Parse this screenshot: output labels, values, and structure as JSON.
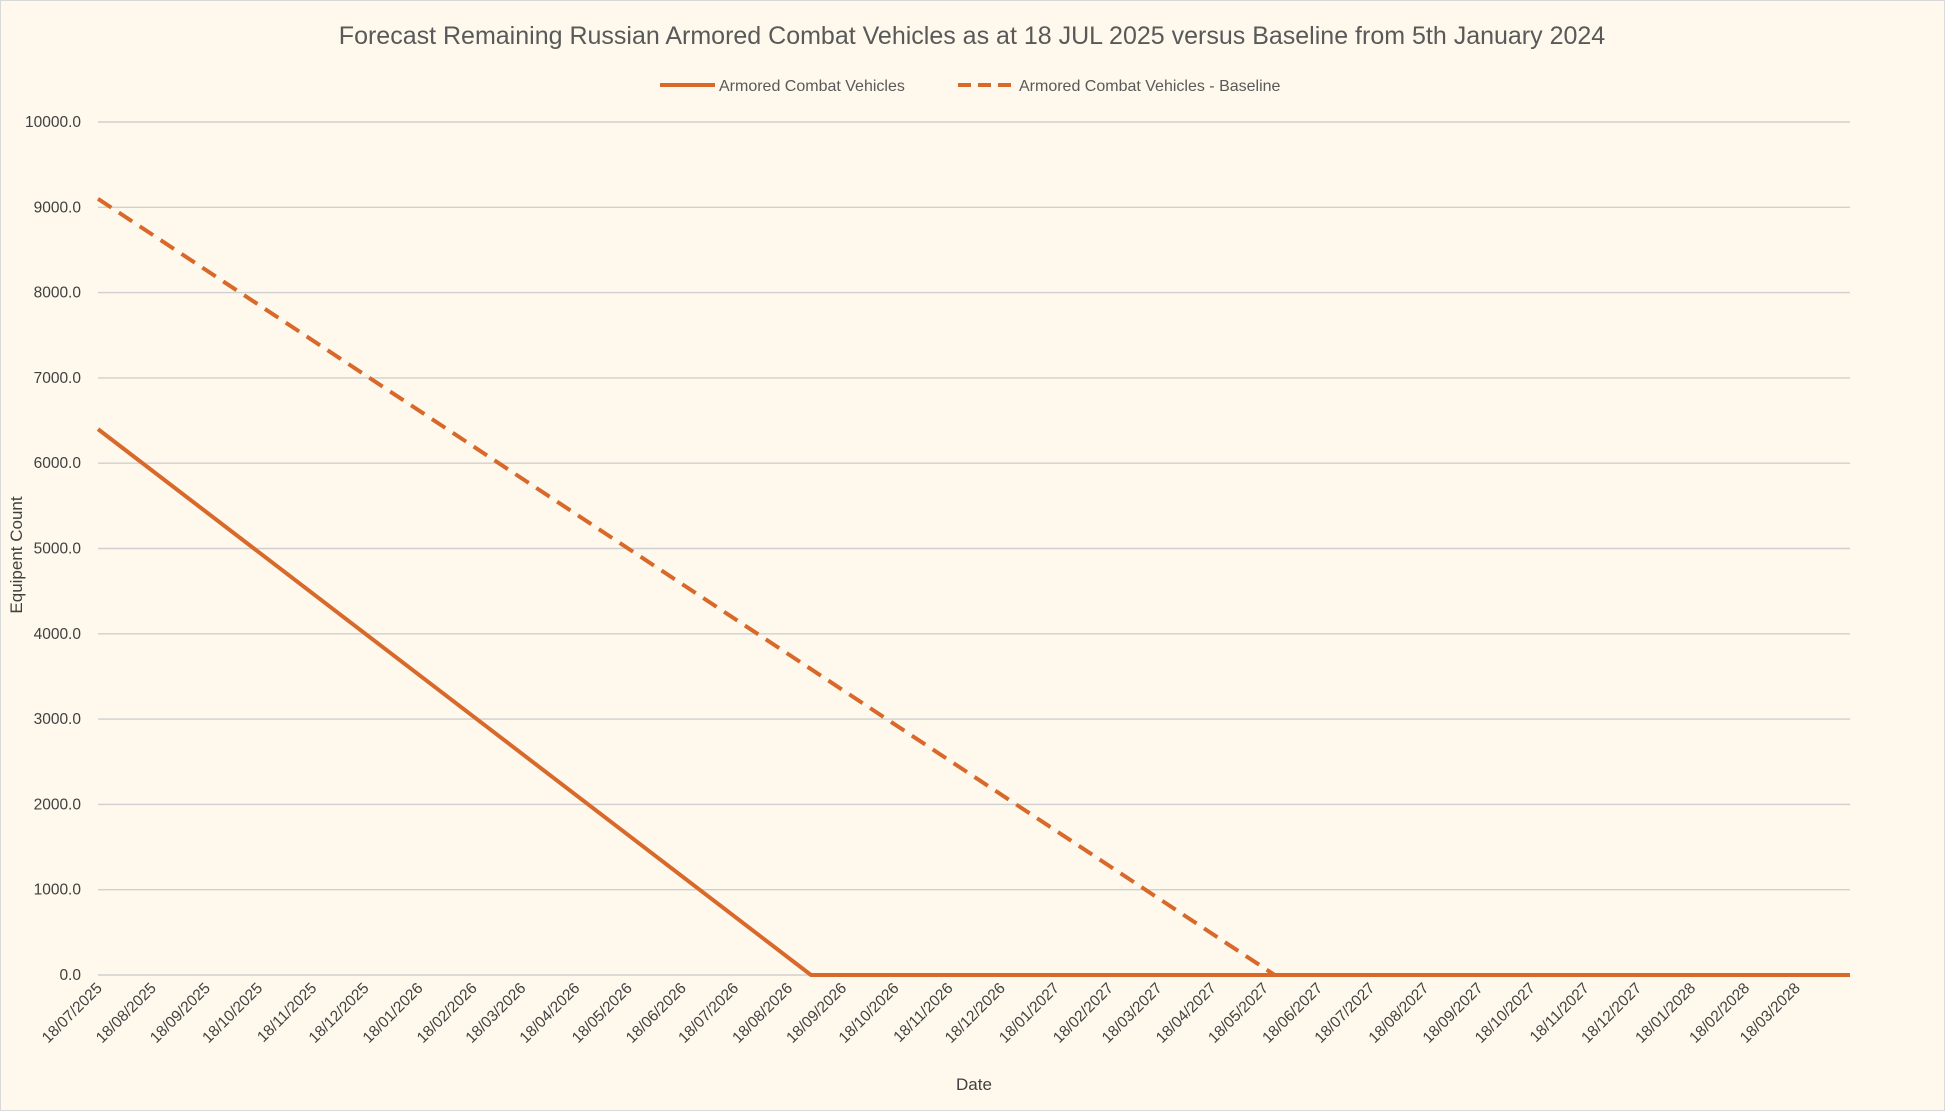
{
  "chart_data": {
    "type": "line",
    "title": "Forecast Remaining Russian Armored Combat Vehicles as at 18 JUL 2025 versus Baseline from 5th January 2024",
    "xlabel": "Date",
    "ylabel": "Equipent Count",
    "ylim": [
      0,
      10000
    ],
    "yticks": [
      "0.0",
      "1000.0",
      "2000.0",
      "3000.0",
      "4000.0",
      "5000.0",
      "6000.0",
      "7000.0",
      "8000.0",
      "9000.0",
      "10000.0"
    ],
    "categories": [
      "18/07/2025",
      "18/08/2025",
      "18/09/2025",
      "18/10/2025",
      "18/11/2025",
      "18/12/2025",
      "18/01/2026",
      "18/02/2026",
      "18/03/2026",
      "18/04/2026",
      "18/05/2026",
      "18/06/2026",
      "18/07/2026",
      "18/08/2026",
      "18/09/2026",
      "18/10/2026",
      "18/11/2026",
      "18/12/2026",
      "18/01/2027",
      "18/02/2027",
      "18/03/2027",
      "18/04/2027",
      "18/05/2027",
      "18/06/2027",
      "18/07/2027",
      "18/08/2027",
      "18/09/2027",
      "18/10/2027",
      "18/11/2027",
      "18/12/2027",
      "18/01/2028",
      "18/02/2028",
      "18/03/2028"
    ],
    "x_end": "18/04/2028",
    "grid": true,
    "legend_position": "top",
    "color": "#d8692b",
    "series": [
      {
        "name": "Armored Combat Vehicles",
        "style": "solid",
        "points": [
          {
            "x": "18/07/2025",
            "y": 6400
          },
          {
            "x": "31/08/2026",
            "y": 0
          },
          {
            "x": "18/04/2028",
            "y": 0
          }
        ]
      },
      {
        "name": "Armored Combat Vehicles - Baseline",
        "style": "dashed",
        "points": [
          {
            "x": "18/07/2025",
            "y": 9100
          },
          {
            "x": "24/05/2027",
            "y": 0
          }
        ]
      }
    ]
  }
}
